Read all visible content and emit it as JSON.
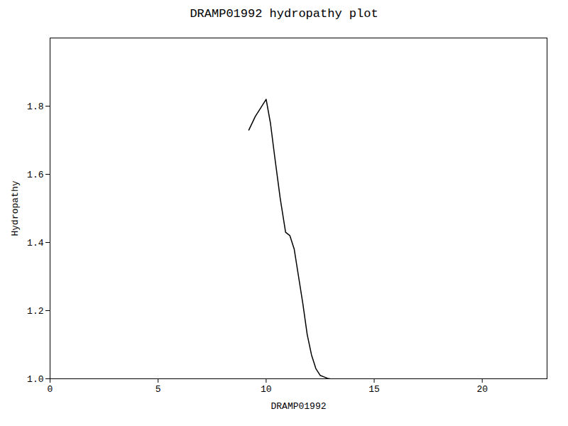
{
  "chart_data": {
    "type": "line",
    "title": "DRAMP01992 hydropathy plot",
    "xlabel": "DRAMP01992",
    "ylabel": "Hydropathy",
    "x": [
      9.2,
      9.5,
      9.7,
      9.85,
      10.0,
      10.2,
      10.4,
      10.65,
      10.9,
      11.1,
      11.3,
      11.5,
      11.7,
      11.9,
      12.1,
      12.3,
      12.5,
      12.7,
      12.85,
      12.95
    ],
    "values": [
      1.73,
      1.77,
      1.79,
      1.805,
      1.82,
      1.75,
      1.65,
      1.53,
      1.43,
      1.42,
      1.38,
      1.3,
      1.22,
      1.13,
      1.07,
      1.03,
      1.01,
      1.005,
      1.001,
      1.0
    ],
    "color": "#000000",
    "xlim": [
      0,
      23
    ],
    "ylim": [
      1.0,
      2.0
    ],
    "xticks": [
      0,
      5,
      10,
      15,
      20
    ],
    "yticks": [
      {
        "value": 1.0,
        "label": "1.0"
      },
      1.2,
      1.4,
      1.6,
      1.8
    ],
    "grid": false
  }
}
